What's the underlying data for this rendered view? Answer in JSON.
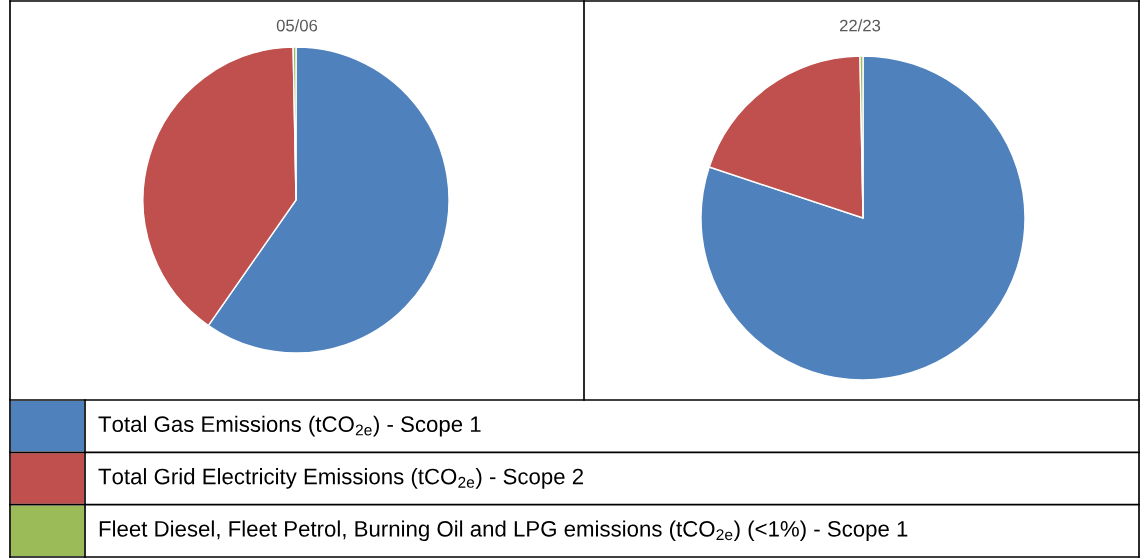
{
  "chart_data": [
    {
      "type": "pie",
      "title": "05/06",
      "categories": [
        "Total Gas Emissions (tCO$_{2e}$) - Scope 1",
        "Total Grid Electricity Emissions (tCO$_{2e}$) - Scope 2",
        "Fleet Diesel, Fleet Petrol, Burning Oil and LPG emissions (tCO$_{2e}$) (<1%) - Scope 1"
      ],
      "values": [
        59.7,
        40.0,
        0.3
      ],
      "colors": [
        "#4f81bd",
        "#c0504d",
        "#9bbb59"
      ],
      "legend": "bottom"
    },
    {
      "type": "pie",
      "title": "22/23",
      "values": [
        80.1,
        19.6,
        0.3
      ],
      "colors": [
        "#4f81bd",
        "#c0504d",
        "#9bbb59"
      ]
    }
  ]
}
